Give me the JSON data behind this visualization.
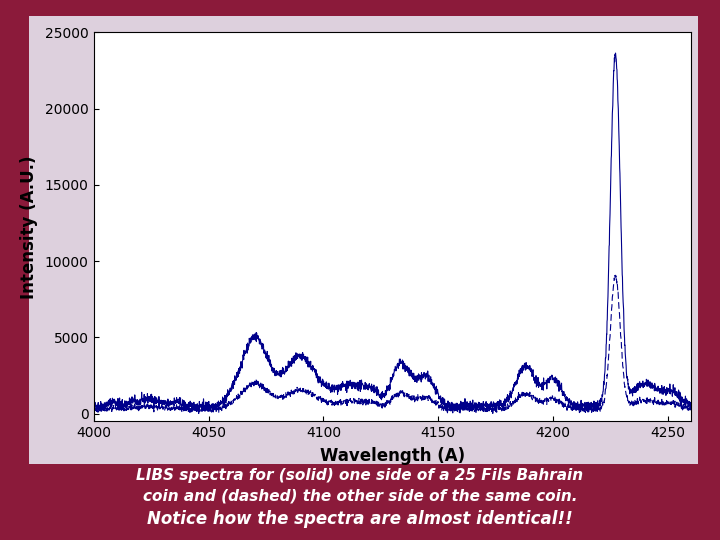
{
  "xlim": [
    4000,
    4260
  ],
  "ylim": [
    -500,
    25000
  ],
  "yticks": [
    0,
    5000,
    10000,
    15000,
    20000,
    25000
  ],
  "xticks": [
    4000,
    4050,
    4100,
    4150,
    4200,
    4250
  ],
  "xlabel": "Wavelength (A)",
  "ylabel": "Intensity (A.U.)",
  "line_color": "#00008B",
  "bg_color": "#ffffff",
  "outer_bg": "#8B1A3A",
  "panel_bg": "#ddd0dd",
  "caption_line1": "LIBS spectra for (solid) one side of a 25 Fils Bahrain",
  "caption_line2": "coin and (dashed) the other side of the same coin.",
  "caption_line3": "Notice how the spectra are almost identical!!",
  "caption_color": "#ffffff"
}
